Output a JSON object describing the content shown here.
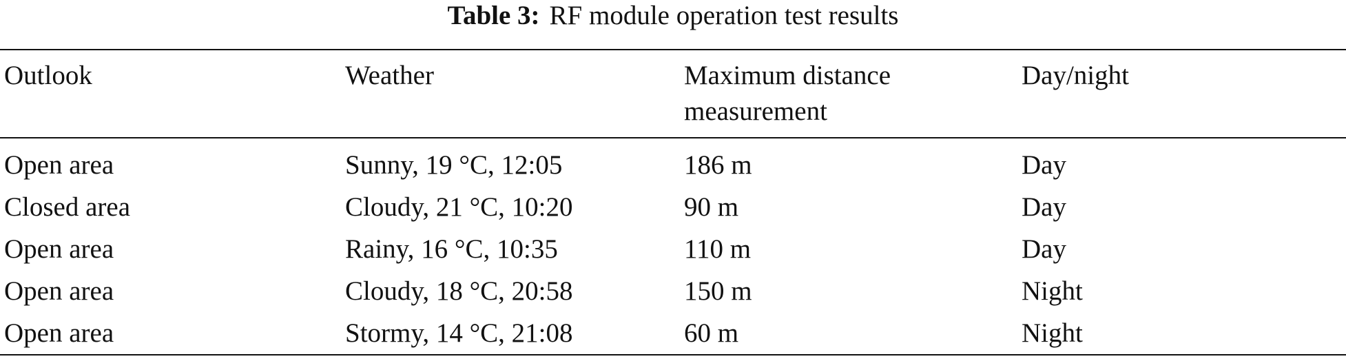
{
  "title": {
    "label": "Table 3:",
    "text": "RF module operation test results"
  },
  "table": {
    "header": [
      "Outlook",
      "Weather",
      "Maximum distance measurement",
      "Day/night"
    ],
    "rows": [
      [
        "Open area",
        "Sunny, 19 °C, 12:05",
        "186 m",
        "Day"
      ],
      [
        "Closed area",
        "Cloudy, 21 °C, 10:20",
        "90 m",
        "Day"
      ],
      [
        "Open area",
        "Rainy, 16 °C, 10:35",
        "110 m",
        "Day"
      ],
      [
        "Open area",
        "Cloudy, 18 °C, 20:58",
        "150 m",
        "Night"
      ],
      [
        "Open area",
        "Stormy, 14 °C, 21:08",
        "60 m",
        "Night"
      ]
    ]
  }
}
